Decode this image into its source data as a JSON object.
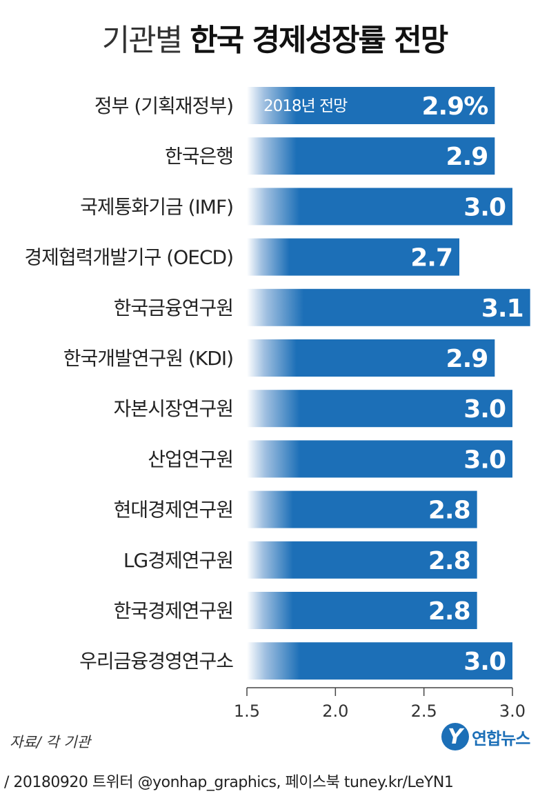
{
  "title": {
    "light": "기관별",
    "bold": "한국 경제성장률 전망"
  },
  "source": "자료/ 각 기관",
  "logo": {
    "mark": "Y",
    "text": "연합뉴스"
  },
  "footer": "/ 20180920 트위터 @yonhap_graphics, 페이스북 tuney.kr/LeYN1",
  "colors": {
    "bar": "#1c6fb7",
    "bar_fade": "#ffffff",
    "label": "#222222",
    "value": "#ffffff"
  },
  "chart_data": {
    "type": "bar",
    "orientation": "horizontal",
    "inner_label": "2018년 전망",
    "first_value_label": "2.9%",
    "categories": [
      "정부 (기획재정부)",
      "한국은행",
      "국제통화기금 (IMF)",
      "경제협력개발기구 (OECD)",
      "한국금융연구원",
      "한국개발연구원 (KDI)",
      "자본시장연구원",
      "산업연구원",
      "현대경제연구원",
      "LG경제연구원",
      "한국경제연구원",
      "우리금융경영연구소"
    ],
    "values": [
      2.9,
      2.9,
      3.0,
      2.7,
      3.1,
      2.9,
      3.0,
      3.0,
      2.8,
      2.8,
      2.8,
      3.0
    ],
    "xlim": [
      1.5,
      3.1
    ],
    "xticks": [
      "1.5",
      "2.0",
      "2.5",
      "3.0"
    ],
    "grid": false
  }
}
